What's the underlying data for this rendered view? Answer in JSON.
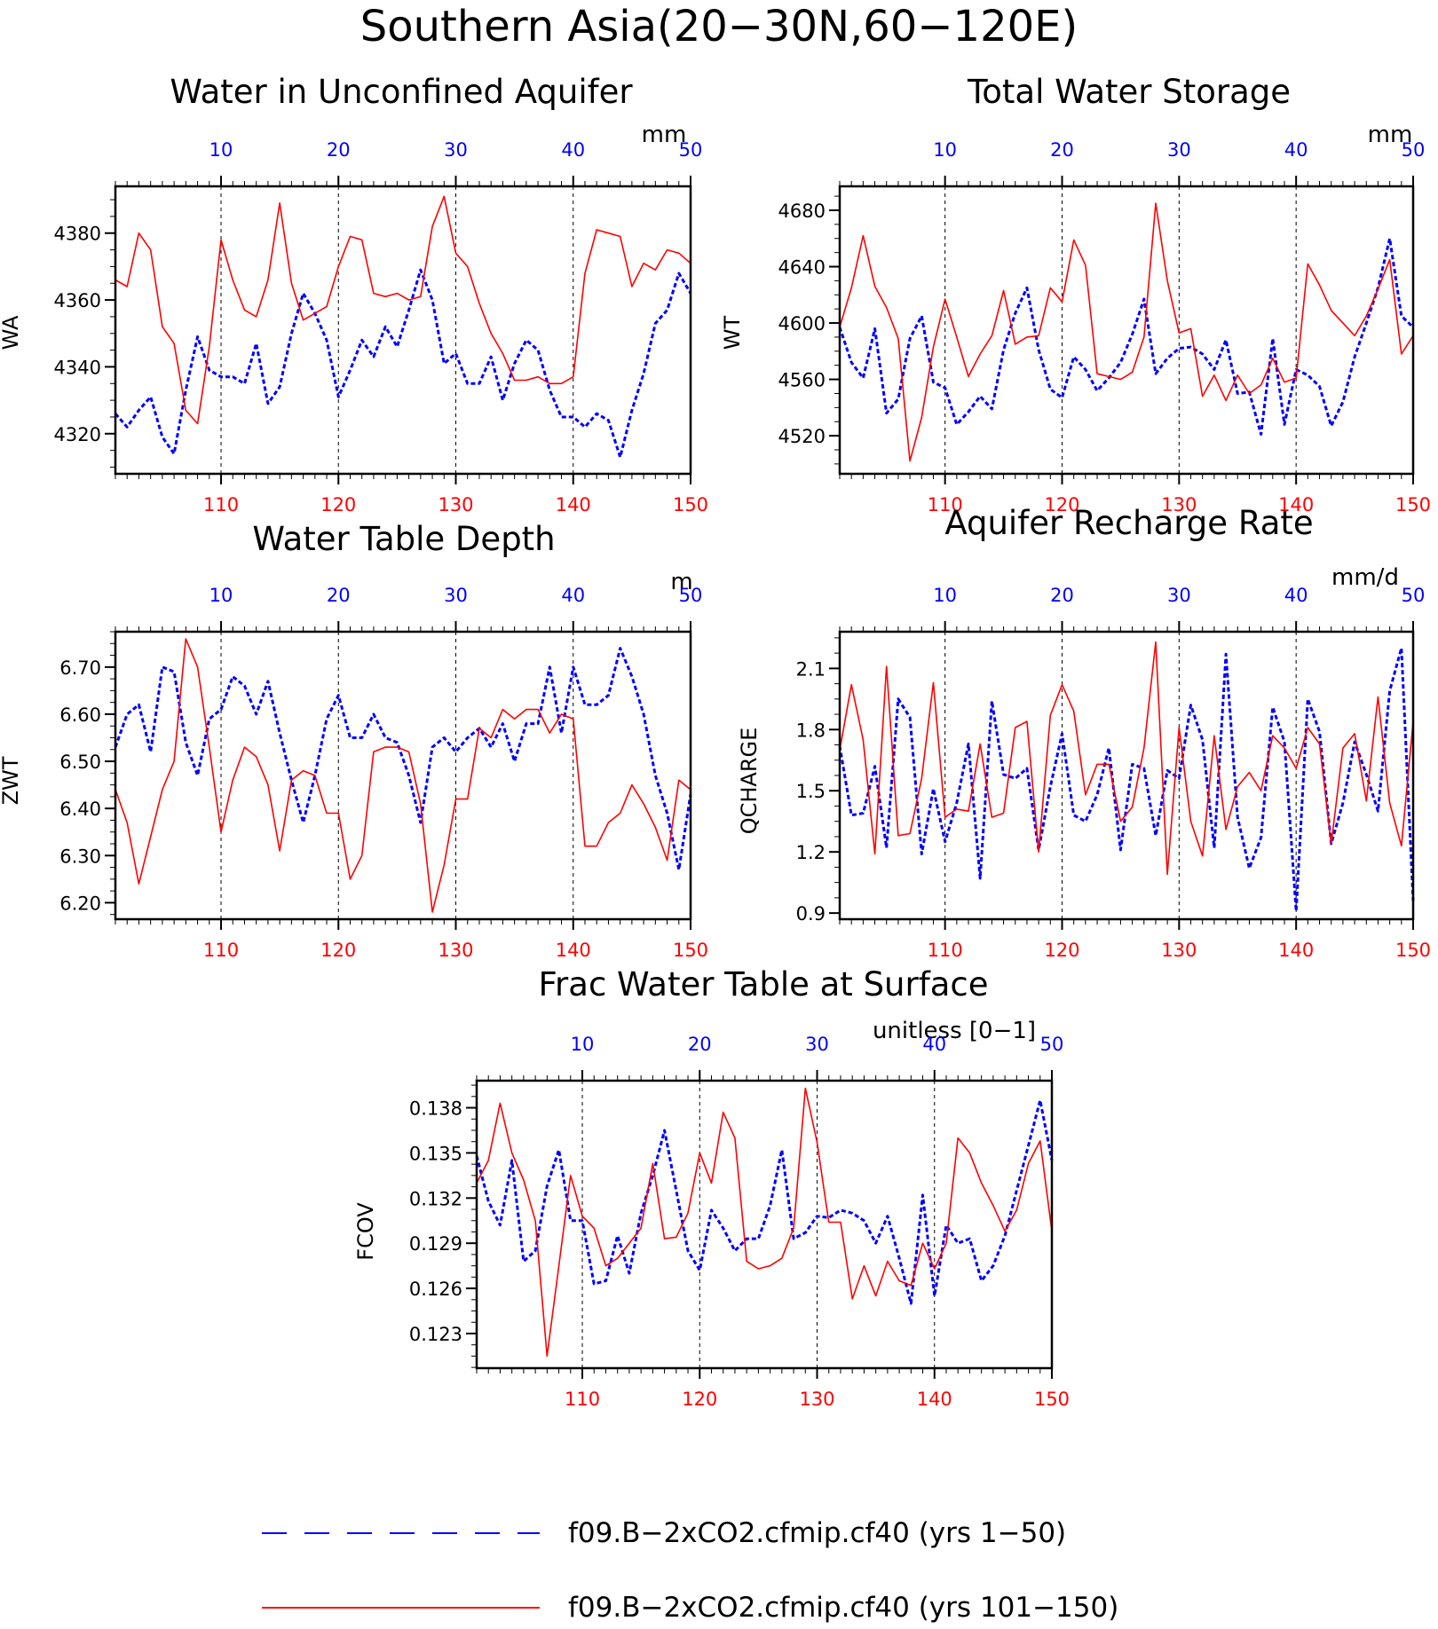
{
  "figure": {
    "title": "Southern Asia(20−30N,60−120E)"
  },
  "legend": {
    "items": [
      {
        "label": "f09.B−2xCO2.cfmip.cf40 (yrs 1−50)",
        "color": "#0000ff",
        "style": "dashed"
      },
      {
        "label": "f09.B−2xCO2.cfmip.cf40 (yrs 101−150)",
        "color": "#ff0000",
        "style": "solid"
      }
    ]
  },
  "colors": {
    "top_axis": "#0000ff",
    "bottom_axis": "#ff0000",
    "series_blue": "#0000ff",
    "series_red": "#ff0000"
  },
  "chart_data": [
    {
      "type": "line",
      "title": "Water in Unconfined Aquifer",
      "units": "mm",
      "ylabel": "WA",
      "ylim": [
        4308,
        4394
      ],
      "yticks": [
        4320,
        4340,
        4360,
        4380
      ],
      "ytick_labels": [
        "4320",
        "4340",
        "4360",
        "4380"
      ],
      "x_top": {
        "range": [
          1,
          50
        ],
        "ticks": [
          10,
          20,
          30,
          40,
          50
        ],
        "labels": [
          "10",
          "20",
          "30",
          "40",
          "50"
        ]
      },
      "x_bottom": {
        "range": [
          101,
          150
        ],
        "ticks": [
          110,
          120,
          130,
          140,
          150
        ],
        "labels": [
          "110",
          "120",
          "130",
          "140",
          "150"
        ]
      },
      "vgrid": [
        10,
        20,
        30,
        40
      ],
      "series": [
        {
          "values": [
            4326,
            4322,
            4327,
            4331,
            4319,
            4314,
            4333,
            4349,
            4339,
            4337,
            4337,
            4335,
            4347,
            4329,
            4334,
            4350,
            4362,
            4356,
            4348,
            4331,
            4339,
            4348,
            4343,
            4352,
            4346,
            4357,
            4369,
            4360,
            4341,
            4344,
            4335,
            4335,
            4343,
            4330,
            4341,
            4348,
            4345,
            4333,
            4325,
            4325,
            4322,
            4326,
            4324,
            4313,
            4327,
            4338,
            4353,
            4357,
            4368,
            4362
          ]
        },
        {
          "values": [
            4366,
            4364,
            4380,
            4375,
            4352,
            4347,
            4327,
            4323,
            4346,
            4378,
            4366,
            4357,
            4355,
            4366,
            4389,
            4365,
            4354,
            4356,
            4358,
            4370,
            4379,
            4378,
            4362,
            4361,
            4362,
            4360,
            4361,
            4382,
            4391,
            4374,
            4370,
            4359,
            4350,
            4344,
            4336,
            4336,
            4337,
            4335,
            4335,
            4337,
            4368,
            4381,
            4380,
            4379,
            4364,
            4371,
            4369,
            4375,
            4374,
            4371
          ]
        }
      ]
    },
    {
      "type": "line",
      "title": "Total Water Storage",
      "units": "mm",
      "ylabel": "WT",
      "ylim": [
        4493,
        4697
      ],
      "yticks": [
        4520,
        4560,
        4600,
        4640,
        4680
      ],
      "ytick_labels": [
        "4520",
        "4560",
        "4600",
        "4640",
        "4680"
      ],
      "x_top": {
        "range": [
          1,
          50
        ],
        "ticks": [
          10,
          20,
          30,
          40,
          50
        ],
        "labels": [
          "10",
          "20",
          "30",
          "40",
          "50"
        ]
      },
      "x_bottom": {
        "range": [
          101,
          150
        ],
        "ticks": [
          110,
          120,
          130,
          140,
          150
        ],
        "labels": [
          "110",
          "120",
          "130",
          "140",
          "150"
        ]
      },
      "vgrid": [
        10,
        20,
        30,
        40
      ],
      "series": [
        {
          "values": [
            4597,
            4572,
            4561,
            4596,
            4536,
            4546,
            4589,
            4605,
            4558,
            4554,
            4528,
            4537,
            4548,
            4539,
            4581,
            4607,
            4625,
            4581,
            4553,
            4547,
            4576,
            4567,
            4552,
            4561,
            4572,
            4592,
            4617,
            4564,
            4575,
            4582,
            4583,
            4578,
            4567,
            4588,
            4550,
            4551,
            4521,
            4589,
            4528,
            4567,
            4563,
            4555,
            4527,
            4544,
            4576,
            4600,
            4625,
            4660,
            4605,
            4597
          ]
        },
        {
          "values": [
            4597,
            4625,
            4662,
            4626,
            4611,
            4589,
            4502,
            4533,
            4583,
            4617,
            4590,
            4562,
            4578,
            4591,
            4623,
            4585,
            4590,
            4591,
            4625,
            4615,
            4659,
            4641,
            4564,
            4562,
            4560,
            4565,
            4590,
            4685,
            4630,
            4593,
            4596,
            4548,
            4563,
            4545,
            4563,
            4550,
            4556,
            4575,
            4558,
            4561,
            4642,
            4627,
            4609,
            4600,
            4591,
            4605,
            4624,
            4645,
            4578,
            4591
          ]
        }
      ]
    },
    {
      "type": "line",
      "title": "Water Table Depth",
      "units": "m",
      "ylabel": "ZWT",
      "ylim": [
        6.165,
        6.775
      ],
      "yticks": [
        6.2,
        6.3,
        6.4,
        6.5,
        6.6,
        6.7
      ],
      "ytick_labels": [
        "6.20",
        "6.30",
        "6.40",
        "6.50",
        "6.60",
        "6.70"
      ],
      "x_top": {
        "range": [
          1,
          50
        ],
        "ticks": [
          10,
          20,
          30,
          40,
          50
        ],
        "labels": [
          "10",
          "20",
          "30",
          "40",
          "50"
        ]
      },
      "x_bottom": {
        "range": [
          101,
          150
        ],
        "ticks": [
          110,
          120,
          130,
          140,
          150
        ],
        "labels": [
          "110",
          "120",
          "130",
          "140",
          "150"
        ]
      },
      "vgrid": [
        10,
        20,
        30,
        40
      ],
      "series": [
        {
          "values": [
            6.53,
            6.6,
            6.62,
            6.52,
            6.7,
            6.69,
            6.54,
            6.47,
            6.59,
            6.61,
            6.68,
            6.66,
            6.6,
            6.67,
            6.56,
            6.46,
            6.37,
            6.47,
            6.59,
            6.64,
            6.55,
            6.55,
            6.6,
            6.55,
            6.54,
            6.47,
            6.37,
            6.53,
            6.55,
            6.52,
            6.55,
            6.57,
            6.53,
            6.58,
            6.5,
            6.58,
            6.58,
            6.7,
            6.56,
            6.7,
            6.62,
            6.62,
            6.64,
            6.74,
            6.68,
            6.6,
            6.47,
            6.39,
            6.27,
            6.43
          ]
        },
        {
          "values": [
            6.44,
            6.37,
            6.24,
            6.34,
            6.44,
            6.5,
            6.76,
            6.7,
            6.53,
            6.35,
            6.46,
            6.53,
            6.51,
            6.45,
            6.31,
            6.46,
            6.48,
            6.47,
            6.39,
            6.39,
            6.25,
            6.3,
            6.52,
            6.53,
            6.53,
            6.52,
            6.41,
            6.18,
            6.28,
            6.42,
            6.42,
            6.57,
            6.55,
            6.61,
            6.59,
            6.61,
            6.61,
            6.56,
            6.6,
            6.59,
            6.32,
            6.32,
            6.37,
            6.39,
            6.45,
            6.41,
            6.36,
            6.29,
            6.46,
            6.44
          ]
        }
      ]
    },
    {
      "type": "line",
      "title": "Aquifer Recharge Rate",
      "units": "mm/d",
      "ylabel": "QCHARGE",
      "ylim": [
        0.87,
        2.28
      ],
      "yticks": [
        0.9,
        1.2,
        1.5,
        1.8,
        2.1
      ],
      "ytick_labels": [
        "0.9",
        "1.2",
        "1.5",
        "1.8",
        "2.1"
      ],
      "x_top": {
        "range": [
          1,
          50
        ],
        "ticks": [
          10,
          20,
          30,
          40,
          50
        ],
        "labels": [
          "10",
          "20",
          "30",
          "40",
          "50"
        ]
      },
      "x_bottom": {
        "range": [
          101,
          150
        ],
        "ticks": [
          110,
          120,
          130,
          140,
          150
        ],
        "labels": [
          "110",
          "120",
          "130",
          "140",
          "150"
        ]
      },
      "vgrid": [
        10,
        20,
        30,
        40
      ],
      "series": [
        {
          "values": [
            1.72,
            1.38,
            1.39,
            1.62,
            1.22,
            1.95,
            1.86,
            1.19,
            1.51,
            1.25,
            1.44,
            1.73,
            1.07,
            1.94,
            1.58,
            1.56,
            1.61,
            1.21,
            1.52,
            1.78,
            1.38,
            1.35,
            1.48,
            1.71,
            1.21,
            1.63,
            1.61,
            1.28,
            1.6,
            1.56,
            1.92,
            1.75,
            1.22,
            2.17,
            1.37,
            1.12,
            1.27,
            1.91,
            1.74,
            0.91,
            1.95,
            1.79,
            1.24,
            1.44,
            1.74,
            1.58,
            1.4,
            1.99,
            2.2,
            0.96
          ]
        },
        {
          "values": [
            1.7,
            2.02,
            1.75,
            1.19,
            2.11,
            1.28,
            1.29,
            1.56,
            2.03,
            1.37,
            1.41,
            1.4,
            1.73,
            1.37,
            1.39,
            1.81,
            1.84,
            1.2,
            1.87,
            2.02,
            1.89,
            1.48,
            1.63,
            1.63,
            1.35,
            1.42,
            1.71,
            2.23,
            1.09,
            1.81,
            1.35,
            1.18,
            1.77,
            1.31,
            1.52,
            1.59,
            1.5,
            1.77,
            1.71,
            1.61,
            1.81,
            1.73,
            1.24,
            1.71,
            1.78,
            1.45,
            1.96,
            1.44,
            1.23,
            1.84
          ]
        }
      ]
    },
    {
      "type": "line",
      "title": "Frac Water Table at Surface",
      "units": "unitless [0−1]",
      "ylabel": "FCOV",
      "ylim": [
        0.1207,
        0.1398
      ],
      "yticks": [
        0.123,
        0.126,
        0.129,
        0.132,
        0.135,
        0.138
      ],
      "ytick_labels": [
        "0.123",
        "0.126",
        "0.129",
        "0.132",
        "0.135",
        "0.138"
      ],
      "x_top": {
        "range": [
          1,
          50
        ],
        "ticks": [
          10,
          20,
          30,
          40,
          50
        ],
        "labels": [
          "10",
          "20",
          "30",
          "40",
          "50"
        ]
      },
      "x_bottom": {
        "range": [
          101,
          150
        ],
        "ticks": [
          110,
          120,
          130,
          140,
          150
        ],
        "labels": [
          "110",
          "120",
          "130",
          "140",
          "150"
        ]
      },
      "vgrid": [
        10,
        20,
        30,
        40
      ],
      "series": [
        {
          "values": [
            0.1348,
            0.1318,
            0.1302,
            0.1345,
            0.1278,
            0.1285,
            0.1328,
            0.1352,
            0.1305,
            0.1305,
            0.1263,
            0.1265,
            0.1295,
            0.127,
            0.131,
            0.1335,
            0.1365,
            0.1325,
            0.1285,
            0.1272,
            0.1312,
            0.13,
            0.1285,
            0.1293,
            0.1293,
            0.1315,
            0.1352,
            0.1293,
            0.1297,
            0.1308,
            0.1307,
            0.1312,
            0.131,
            0.1305,
            0.129,
            0.1308,
            0.128,
            0.125,
            0.1322,
            0.1255,
            0.1302,
            0.129,
            0.1293,
            0.1265,
            0.1275,
            0.1295,
            0.1325,
            0.1355,
            0.1385,
            0.1345
          ]
        },
        {
          "values": [
            0.133,
            0.1345,
            0.1383,
            0.135,
            0.1332,
            0.1305,
            0.1215,
            0.1275,
            0.1335,
            0.1308,
            0.13,
            0.1275,
            0.128,
            0.129,
            0.13,
            0.1343,
            0.1293,
            0.1294,
            0.131,
            0.135,
            0.133,
            0.1377,
            0.136,
            0.1278,
            0.1273,
            0.1275,
            0.128,
            0.13,
            0.1393,
            0.1357,
            0.1304,
            0.1304,
            0.1253,
            0.1275,
            0.1255,
            0.1278,
            0.1265,
            0.1262,
            0.129,
            0.1273,
            0.129,
            0.136,
            0.135,
            0.133,
            0.1315,
            0.1298,
            0.1312,
            0.1343,
            0.1358,
            0.1298
          ]
        }
      ]
    }
  ]
}
